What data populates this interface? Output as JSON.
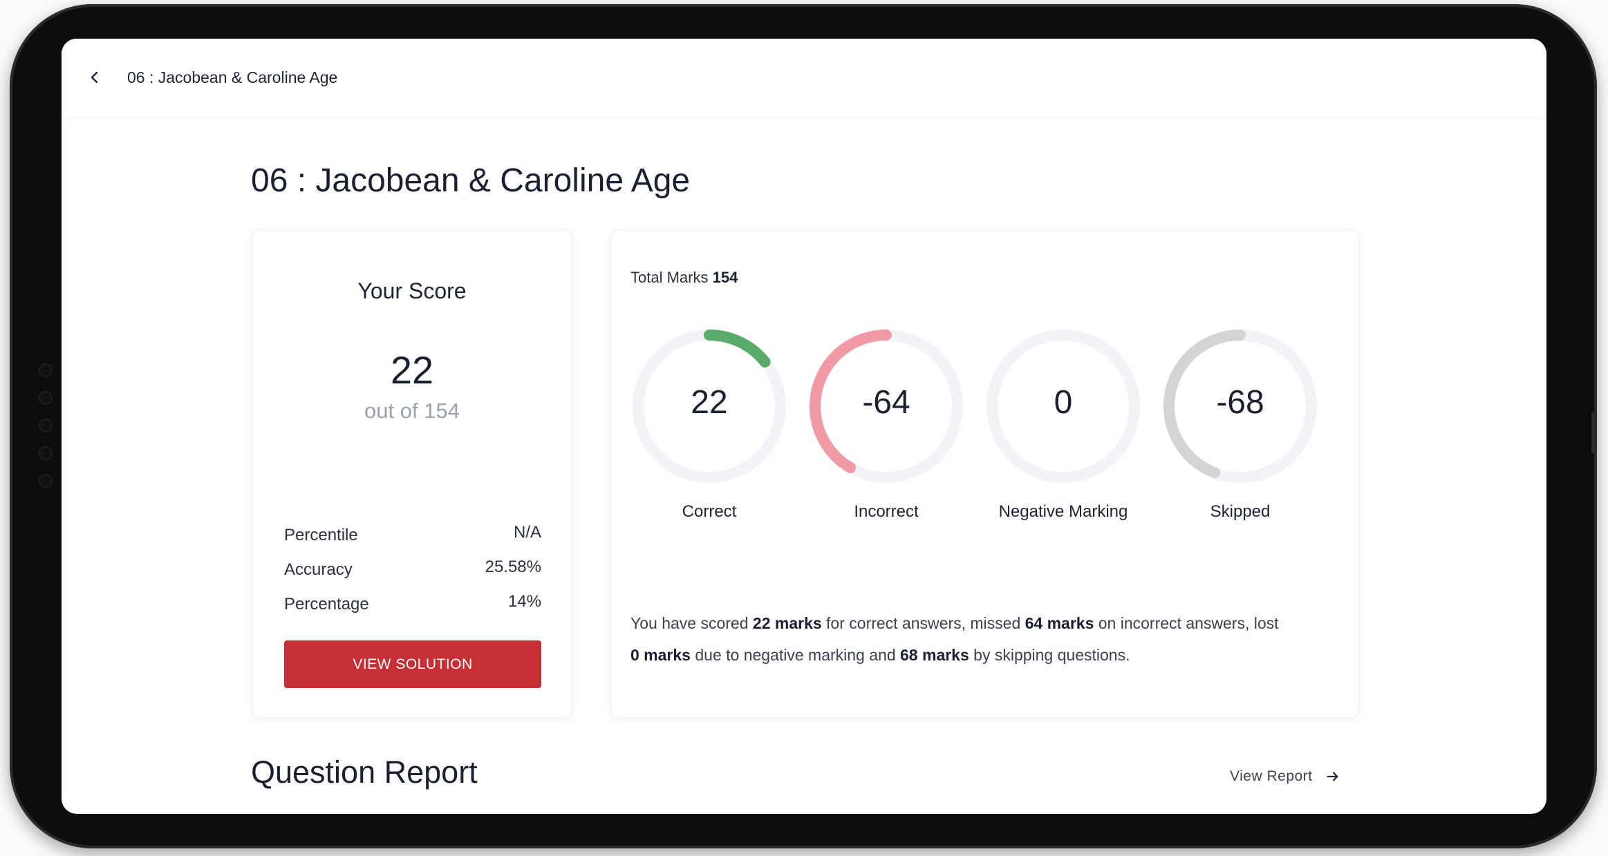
{
  "topbar": {
    "title": "06 : Jacobean & Caroline Age"
  },
  "page": {
    "title": "06 : Jacobean & Caroline Age"
  },
  "score_card": {
    "heading": "Your Score",
    "score": "22",
    "out_of": "out of 154",
    "stats": [
      {
        "label": "Percentile",
        "value": "N/A"
      },
      {
        "label": "Accuracy",
        "value": "25.58%"
      },
      {
        "label": "Percentage",
        "value": "14%"
      }
    ],
    "view_solution_label": "VIEW SOLUTION"
  },
  "marks_card": {
    "total_marks_label": "Total Marks",
    "total_marks_value": "154",
    "gauges": [
      {
        "label": "Correct",
        "value": "22",
        "fraction": 0.1429,
        "color": "#5aab6a"
      },
      {
        "label": "Incorrect",
        "value": "-64",
        "fraction": 0.4156,
        "color": "#ef9aa5"
      },
      {
        "label": "Negative Marking",
        "value": "0",
        "fraction": 0,
        "color": "#cfd2d6"
      },
      {
        "label": "Skipped",
        "value": "-68",
        "fraction": 0.4416,
        "color": "#d4d4d4"
      }
    ],
    "track_color": "#f1f3f6",
    "summary": {
      "p1": "You have scored ",
      "b1": "22 marks",
      "p2": " for correct answers, missed ",
      "b2": "64 marks",
      "p3": " on incorrect answers, lost ",
      "b3": "0 marks",
      "p4": " due to negative marking and ",
      "b4": "68 marks",
      "p5": " by skipping questions."
    }
  },
  "question_report": {
    "title": "Question Report",
    "view_report_label": "View Report"
  },
  "colors": {
    "accent": "#c62f33",
    "text": "#1b2030"
  }
}
